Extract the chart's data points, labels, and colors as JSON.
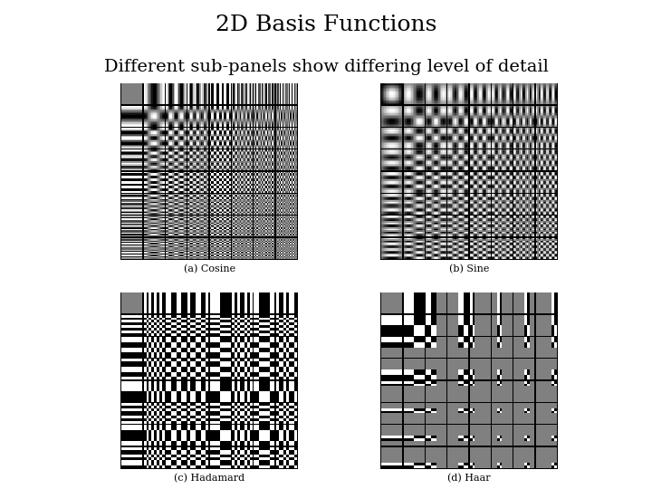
{
  "title": "2D Basis Functions",
  "subtitle": "Different sub-panels show differing level of detail",
  "panel_labels": [
    "(a) Cosine",
    "(b) Sine",
    "(c) Hadamard",
    "(d) Haar"
  ],
  "n_basis": 8,
  "patch_size": 16,
  "background_color": "#ffffff",
  "title_fontsize": 18,
  "subtitle_fontsize": 14,
  "label_fontsize": 8
}
